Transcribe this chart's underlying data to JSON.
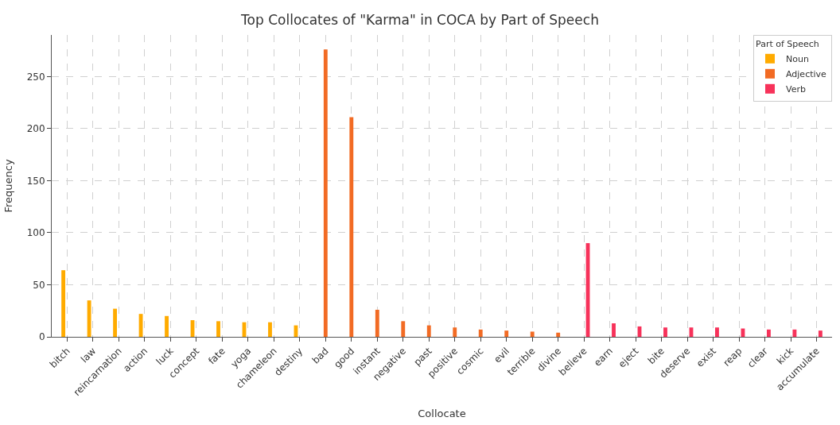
{
  "chart_data": {
    "type": "bar",
    "title": "Top Collocates of \"Karma\" in COCA by Part of Speech",
    "xlabel": "Collocate",
    "ylabel": "Frequency",
    "legend_title": "Part of Speech",
    "categories": [
      "bitch",
      "law",
      "reincarnation",
      "action",
      "luck",
      "concept",
      "fate",
      "yoga",
      "chameleon",
      "destiny",
      "bad",
      "good",
      "instant",
      "negative",
      "past",
      "positive",
      "cosmic",
      "evil",
      "terrible",
      "divine",
      "believe",
      "earn",
      "eject",
      "bite",
      "deserve",
      "exist",
      "reap",
      "clear",
      "kick",
      "accumulate"
    ],
    "series": [
      {
        "name": "Noun",
        "color": "#ffab00",
        "values": [
          64,
          35,
          27,
          22,
          20,
          16,
          15,
          14,
          14,
          11,
          null,
          null,
          null,
          null,
          null,
          null,
          null,
          null,
          null,
          null,
          null,
          null,
          null,
          null,
          null,
          null,
          null,
          null,
          null,
          null
        ]
      },
      {
        "name": "Adjective",
        "color": "#f26b24",
        "values": [
          null,
          null,
          null,
          null,
          null,
          null,
          null,
          null,
          null,
          null,
          276,
          211,
          26,
          15,
          11,
          9,
          7,
          6,
          5,
          4,
          null,
          null,
          null,
          null,
          null,
          null,
          null,
          null,
          null,
          null
        ]
      },
      {
        "name": "Verb",
        "color": "#f7325a",
        "values": [
          null,
          null,
          null,
          null,
          null,
          null,
          null,
          null,
          null,
          null,
          null,
          null,
          null,
          null,
          null,
          null,
          null,
          null,
          null,
          null,
          90,
          13,
          10,
          9,
          9,
          9,
          8,
          7,
          7,
          6
        ]
      }
    ],
    "ylim": [
      0,
      290
    ],
    "yticks": [
      0,
      50,
      100,
      150,
      200,
      250
    ],
    "grid": true,
    "legend": "top right"
  }
}
